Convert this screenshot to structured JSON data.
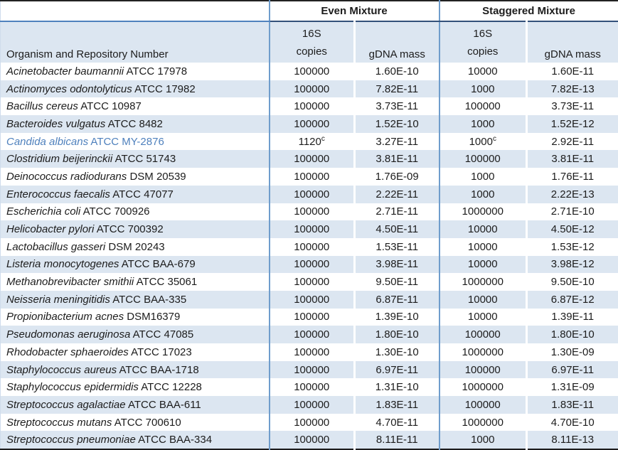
{
  "header": {
    "even_group": "Even Mixture",
    "staggered_group": "Staggered Mixture",
    "organism_col": "Organism and Repository Number",
    "copies_line1": "16S",
    "copies_line2": "copies",
    "gdna_col": "gDNA mass"
  },
  "colors": {
    "band_blue": "#dce6f1",
    "rule_blue": "#6f9dcc",
    "header_rule_blue": "#4f81bd",
    "highlight_text_blue": "#4f81bd",
    "border_dark": "#222222"
  },
  "footnote_marker": "c",
  "rows": [
    {
      "species": "Acinetobacter baumannii",
      "repo": "ATCC 17978",
      "even_copies": "100000",
      "even_mass": "1.60E-10",
      "stag_copies": "10000",
      "stag_mass": "1.60E-11",
      "highlight": false
    },
    {
      "species": "Actinomyces odontolyticus",
      "repo": "ATCC 17982",
      "even_copies": "100000",
      "even_mass": "7.82E-11",
      "stag_copies": "1000",
      "stag_mass": "7.82E-13",
      "highlight": false
    },
    {
      "species": "Bacillus cereus",
      "repo": "ATCC 10987",
      "even_copies": "100000",
      "even_mass": "3.73E-11",
      "stag_copies": "100000",
      "stag_mass": "3.73E-11",
      "highlight": false
    },
    {
      "species": "Bacteroides vulgatus",
      "repo": "ATCC 8482",
      "even_copies": "100000",
      "even_mass": "1.52E-10",
      "stag_copies": "1000",
      "stag_mass": "1.52E-12",
      "highlight": false
    },
    {
      "species": "Candida albicans",
      "repo": "ATCC MY-2876",
      "even_copies": "1120",
      "even_sup": "c",
      "even_mass": "3.27E-11",
      "stag_copies": "1000",
      "stag_sup": "c",
      "stag_mass": "2.92E-11",
      "highlight": true
    },
    {
      "species": "Clostridium beijerinckii",
      "repo": "ATCC 51743",
      "even_copies": "100000",
      "even_mass": "3.81E-11",
      "stag_copies": "100000",
      "stag_mass": "3.81E-11",
      "highlight": false
    },
    {
      "species": "Deinococcus radiodurans",
      "repo": "DSM 20539",
      "even_copies": "100000",
      "even_mass": "1.76E-09",
      "stag_copies": "1000",
      "stag_mass": "1.76E-11",
      "highlight": false
    },
    {
      "species": "Enterococcus faecalis",
      "repo": "ATCC 47077",
      "even_copies": "100000",
      "even_mass": "2.22E-11",
      "stag_copies": "1000",
      "stag_mass": "2.22E-13",
      "highlight": false
    },
    {
      "species": "Escherichia coli",
      "repo": "ATCC 700926",
      "even_copies": "100000",
      "even_mass": "2.71E-11",
      "stag_copies": "1000000",
      "stag_mass": "2.71E-10",
      "highlight": false
    },
    {
      "species": "Helicobacter pylori",
      "repo": "ATCC 700392",
      "even_copies": "100000",
      "even_mass": "4.50E-11",
      "stag_copies": "10000",
      "stag_mass": "4.50E-12",
      "highlight": false
    },
    {
      "species": "Lactobacillus gasseri",
      "repo": "DSM 20243",
      "even_copies": "100000",
      "even_mass": "1.53E-11",
      "stag_copies": "10000",
      "stag_mass": "1.53E-12",
      "highlight": false
    },
    {
      "species": "Listeria monocytogenes",
      "repo": "ATCC BAA-679",
      "even_copies": "100000",
      "even_mass": "3.98E-11",
      "stag_copies": "10000",
      "stag_mass": "3.98E-12",
      "highlight": false
    },
    {
      "species": "Methanobrevibacter smithii",
      "repo": "ATCC 35061",
      "even_copies": "100000",
      "even_mass": "9.50E-11",
      "stag_copies": "1000000",
      "stag_mass": "9.50E-10",
      "highlight": false
    },
    {
      "species": "Neisseria meningitidis",
      "repo": "ATCC BAA-335",
      "even_copies": "100000",
      "even_mass": "6.87E-11",
      "stag_copies": "10000",
      "stag_mass": "6.87E-12",
      "highlight": false
    },
    {
      "species": "Propionibacterium acnes",
      "repo": "DSM16379",
      "even_copies": "100000",
      "even_mass": "1.39E-10",
      "stag_copies": "10000",
      "stag_mass": "1.39E-11",
      "highlight": false
    },
    {
      "species": "Pseudomonas aeruginosa",
      "repo": "ATCC 47085",
      "even_copies": "100000",
      "even_mass": "1.80E-10",
      "stag_copies": "100000",
      "stag_mass": "1.80E-10",
      "highlight": false
    },
    {
      "species": "Rhodobacter sphaeroides",
      "repo": "ATCC 17023",
      "even_copies": "100000",
      "even_mass": "1.30E-10",
      "stag_copies": "1000000",
      "stag_mass": "1.30E-09",
      "highlight": false
    },
    {
      "species": "Staphylococcus aureus",
      "repo": "ATCC BAA-1718",
      "even_copies": "100000",
      "even_mass": "6.97E-11",
      "stag_copies": "100000",
      "stag_mass": "6.97E-11",
      "highlight": false
    },
    {
      "species": "Staphylococcus epidermidis",
      "repo": "ATCC 12228",
      "even_copies": "100000",
      "even_mass": "1.31E-10",
      "stag_copies": "1000000",
      "stag_mass": "1.31E-09",
      "highlight": false
    },
    {
      "species": "Streptococcus agalactiae",
      "repo": "ATCC BAA-611",
      "even_copies": "100000",
      "even_mass": "1.83E-11",
      "stag_copies": "100000",
      "stag_mass": "1.83E-11",
      "highlight": false
    },
    {
      "species": "Streptococcus mutans",
      "repo": "ATCC 700610",
      "even_copies": "100000",
      "even_mass": "4.70E-11",
      "stag_copies": "1000000",
      "stag_mass": "4.70E-10",
      "highlight": false
    },
    {
      "species": "Streptococcus pneumoniae",
      "repo": "ATCC BAA-334",
      "even_copies": "100000",
      "even_mass": "8.11E-11",
      "stag_copies": "1000",
      "stag_mass": "8.11E-13",
      "highlight": false
    }
  ]
}
